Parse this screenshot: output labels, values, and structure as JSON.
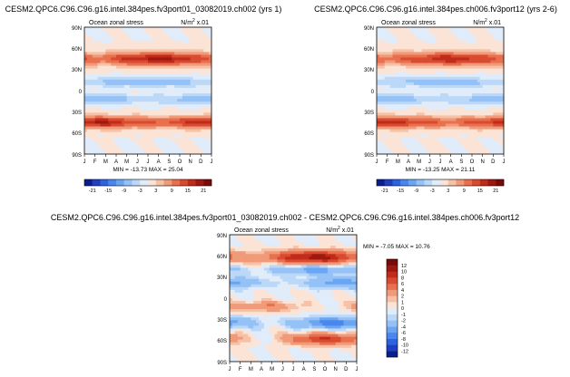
{
  "chart_data": [
    {
      "type": "heatmap",
      "title": "CESM2.QPC6.C96.C96.g16.intel.384pes.fv3port01_03082019.ch002 (yrs 1)",
      "inner_left": "Ocean zonal stress",
      "inner_right_base": "N/m",
      "inner_right_sup": "2",
      "inner_right_tail": " x.01",
      "x_tick_labels": [
        "J",
        "F",
        "M",
        "A",
        "M",
        "J",
        "J",
        "A",
        "S",
        "O",
        "N",
        "D",
        "J"
      ],
      "y_tick_labels": [
        "90N",
        "60N",
        "30N",
        "0",
        "30S",
        "60S",
        "90S"
      ],
      "ylim": [
        -90,
        90
      ],
      "min_max_text": "MIN = -13.73 MAX = 25.04",
      "min": -13.73,
      "max": 25.04,
      "colorbar_labels": [
        "-21",
        "-15",
        "-9",
        "-3",
        "3",
        "9",
        "15",
        "21"
      ],
      "colorbar_levels": [
        -21,
        -18,
        -15,
        -12,
        -9,
        -6,
        -3,
        0,
        3,
        6,
        9,
        12,
        15,
        18,
        21
      ],
      "colors": [
        "#0a1f8c",
        "#1f3fbf",
        "#2f63dd",
        "#4a86ec",
        "#6aa5f3",
        "#94c1f6",
        "#bcd8f8",
        "#e1ecfa",
        "#fbe3d6",
        "#f6c1a6",
        "#f09a79",
        "#e8704e",
        "#d94b30",
        "#c02b1a",
        "#9c1810",
        "#780a08"
      ],
      "features": [
        {
          "lat": 45,
          "width": 10,
          "amp": 15,
          "seasonal": 4,
          "phase": 7
        },
        {
          "lat": -45,
          "width": 9,
          "amp": 15,
          "seasonal": 3,
          "phase": 1
        },
        {
          "lat": 12,
          "width": 7,
          "amp": -7,
          "seasonal": 2,
          "phase": 0
        },
        {
          "lat": -12,
          "width": 7,
          "amp": -7,
          "seasonal": 2,
          "phase": 6
        }
      ]
    },
    {
      "type": "heatmap",
      "title": "CESM2.QPC6.C96.C96.g16.intel.384pes.ch006.fv3port12 (yrs 2-6)",
      "inner_left": "Ocean zonal stress",
      "inner_right_base": "N/m",
      "inner_right_sup": "2",
      "inner_right_tail": " x.01",
      "x_tick_labels": [
        "J",
        "F",
        "M",
        "A",
        "M",
        "J",
        "J",
        "A",
        "S",
        "O",
        "N",
        "D",
        "J"
      ],
      "y_tick_labels": [
        "90N",
        "60N",
        "30N",
        "0",
        "30S",
        "60S",
        "90S"
      ],
      "ylim": [
        -90,
        90
      ],
      "min_max_text": "MIN = -13.25 MAX = 21.11",
      "min": -13.25,
      "max": 21.11,
      "colorbar_labels": [
        "-21",
        "-15",
        "-9",
        "-3",
        "3",
        "9",
        "15",
        "21"
      ],
      "colorbar_levels": [
        -21,
        -18,
        -15,
        -12,
        -9,
        -6,
        -3,
        0,
        3,
        6,
        9,
        12,
        15,
        18,
        21
      ],
      "colors": [
        "#0a1f8c",
        "#1f3fbf",
        "#2f63dd",
        "#4a86ec",
        "#6aa5f3",
        "#94c1f6",
        "#bcd8f8",
        "#e1ecfa",
        "#fbe3d6",
        "#f6c1a6",
        "#f09a79",
        "#e8704e",
        "#d94b30",
        "#c02b1a",
        "#9c1810",
        "#780a08"
      ],
      "features": [
        {
          "lat": 45,
          "width": 10,
          "amp": 14,
          "seasonal": 3,
          "phase": 7
        },
        {
          "lat": -45,
          "width": 9,
          "amp": 14,
          "seasonal": 3,
          "phase": 1
        },
        {
          "lat": 12,
          "width": 7,
          "amp": -7,
          "seasonal": 2,
          "phase": 0
        },
        {
          "lat": -12,
          "width": 7,
          "amp": -7,
          "seasonal": 2,
          "phase": 6
        }
      ]
    },
    {
      "type": "heatmap",
      "title": "CESM2.QPC6.C96.C96.g16.intel.384pes.fv3port01_03082019.ch002 - CESM2.QPC6.C96.C96.g16.intel.384pes.ch006.fv3port12",
      "inner_left": "Ocean zonal stress",
      "inner_right_base": "N/m",
      "inner_right_sup": "2",
      "inner_right_tail": " x.01",
      "x_tick_labels": [
        "J",
        "F",
        "M",
        "A",
        "M",
        "J",
        "J",
        "A",
        "S",
        "O",
        "N",
        "D",
        "J"
      ],
      "y_tick_labels": [
        "90N",
        "60N",
        "30N",
        "0",
        "30S",
        "60S",
        "90S"
      ],
      "ylim": [
        -90,
        90
      ],
      "min_max_text": "MIN = -7.05 MAX = 10.76",
      "min": -7.05,
      "max": 10.76,
      "colorbar_labels": [
        "12",
        "10",
        "8",
        "6",
        "4",
        "2",
        "1",
        "0",
        "-1",
        "-2",
        "-4",
        "-6",
        "-8",
        "-10",
        "-12"
      ],
      "colorbar_levels": [
        -12,
        -10,
        -8,
        -6,
        -4,
        -2,
        -1,
        0,
        1,
        2,
        4,
        6,
        8,
        10,
        12
      ],
      "colors": [
        "#0a1f8c",
        "#1f3fbf",
        "#2f63dd",
        "#4a86ec",
        "#6aa5f3",
        "#94c1f6",
        "#bcd8f8",
        "#e1ecfa",
        "#fbe3d6",
        "#f6c1a6",
        "#f09a79",
        "#e8704e",
        "#d94b30",
        "#c02b1a",
        "#9c1810",
        "#780a08"
      ],
      "features": [
        {
          "lat": 58,
          "width": 9,
          "amp": 7,
          "seasonal": 4,
          "phase": 8
        },
        {
          "lat": 40,
          "width": 7,
          "amp": -3,
          "seasonal": 2,
          "phase": 2
        },
        {
          "lat": 22,
          "width": 8,
          "amp": -3,
          "seasonal": 2,
          "phase": 5
        },
        {
          "lat": -12,
          "width": 7,
          "amp": 2,
          "seasonal": 2,
          "phase": 3
        },
        {
          "lat": -35,
          "width": 8,
          "amp": -4,
          "seasonal": 3,
          "phase": 4
        },
        {
          "lat": -58,
          "width": 8,
          "amp": 4,
          "seasonal": 4,
          "phase": 9
        }
      ]
    }
  ]
}
